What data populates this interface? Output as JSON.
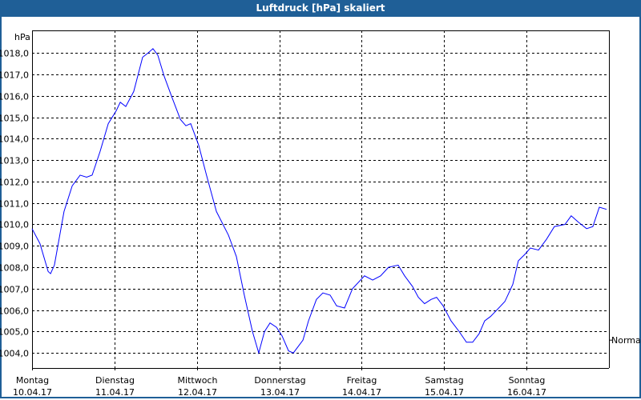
{
  "window": {
    "title": "Luftdruck [hPa] skaliert"
  },
  "chart_data": {
    "type": "line",
    "title": "Luftdruck [hPa] skaliert",
    "ylabel": "hPa",
    "xlabel": "",
    "ylim": [
      1003.3,
      1019.05
    ],
    "xlim_hours": [
      0,
      168
    ],
    "yticks": [
      {
        "value": 1004,
        "label": "1004,0"
      },
      {
        "value": 1005,
        "label": "1005,0"
      },
      {
        "value": 1006,
        "label": "1006,0"
      },
      {
        "value": 1007,
        "label": "1007,0"
      },
      {
        "value": 1008,
        "label": "1008,0"
      },
      {
        "value": 1009,
        "label": "1009,0"
      },
      {
        "value": 1010,
        "label": "1010,0"
      },
      {
        "value": 1011,
        "label": "1011,0"
      },
      {
        "value": 1012,
        "label": "1012,0"
      },
      {
        "value": 1013,
        "label": "1013,0"
      },
      {
        "value": 1014,
        "label": "1014,0"
      },
      {
        "value": 1015,
        "label": "1015,0"
      },
      {
        "value": 1016,
        "label": "1016,0"
      },
      {
        "value": 1017,
        "label": "1017,0"
      },
      {
        "value": 1018,
        "label": "1018,0"
      }
    ],
    "xticks": [
      {
        "hour": 0,
        "day": "Montag",
        "date": "10.04.17"
      },
      {
        "hour": 24,
        "day": "Dienstag",
        "date": "11.04.17"
      },
      {
        "hour": 48,
        "day": "Mittwoch",
        "date": "12.04.17"
      },
      {
        "hour": 72,
        "day": "Donnerstag",
        "date": "13.04.17"
      },
      {
        "hour": 96,
        "day": "Freitag",
        "date": "14.04.17"
      },
      {
        "hour": 120,
        "day": "Samstag",
        "date": "15.04.17"
      },
      {
        "hour": 144,
        "day": "Sonntag",
        "date": "16.04.17"
      }
    ],
    "grid": true,
    "reference": {
      "label": "Normal",
      "value": 1004.6
    },
    "series": [
      {
        "name": "Luftdruck",
        "color": "#0000ff",
        "x": [
          0,
          2.3,
          4.7,
          5.4,
          6.5,
          9.3,
          11.7,
          14,
          15.9,
          17.5,
          19.8,
          22.2,
          24.5,
          25.7,
          27.3,
          29.6,
          32.2,
          33.8,
          35.2,
          36.6,
          38.5,
          40.8,
          43.2,
          44.8,
          46.2,
          48.5,
          50.8,
          53.7,
          57.2,
          59.5,
          61.8,
          64.2,
          66,
          67.7,
          69.3,
          71.2,
          72.8,
          74.7,
          76.1,
          77.5,
          78.9,
          80.5,
          82.8,
          84.7,
          86.8,
          88.7,
          91,
          93.3,
          96.8,
          99.2,
          101.5,
          103.8,
          106.6,
          108.5,
          110.8,
          112.5,
          114.3,
          116.2,
          117.8,
          119.7,
          122,
          124.4,
          126.5,
          128.3,
          130.2,
          131.8,
          133.5,
          135.3,
          137.7,
          140,
          141.6,
          143.5,
          145.1,
          147.5,
          149.8,
          152.1,
          155.2,
          157,
          159.1,
          161.5,
          163.3,
          165.2,
          167.3
        ],
        "y": [
          1009.8,
          1009.1,
          1007.8,
          1007.7,
          1008.1,
          1010.6,
          1011.8,
          1012.3,
          1012.2,
          1012.3,
          1013.4,
          1014.7,
          1015.3,
          1015.7,
          1015.5,
          1016.2,
          1017.8,
          1018.0,
          1018.2,
          1017.9,
          1016.9,
          1015.9,
          1014.9,
          1014.6,
          1014.7,
          1013.7,
          1012.3,
          1010.6,
          1009.5,
          1008.5,
          1006.7,
          1005.0,
          1004.0,
          1005.0,
          1005.4,
          1005.2,
          1004.8,
          1004.1,
          1004.0,
          1004.3,
          1004.6,
          1005.5,
          1006.5,
          1006.8,
          1006.7,
          1006.2,
          1006.1,
          1007.0,
          1007.6,
          1007.4,
          1007.6,
          1008.0,
          1008.1,
          1007.6,
          1007.1,
          1006.6,
          1006.3,
          1006.5,
          1006.6,
          1006.2,
          1005.5,
          1005.0,
          1004.5,
          1004.5,
          1004.9,
          1005.5,
          1005.7,
          1006.0,
          1006.4,
          1007.2,
          1008.3,
          1008.6,
          1008.9,
          1008.8,
          1009.3,
          1009.9,
          1010.0,
          1010.4,
          1010.1,
          1009.8,
          1009.9,
          1010.8,
          1010.7
        ]
      }
    ]
  }
}
